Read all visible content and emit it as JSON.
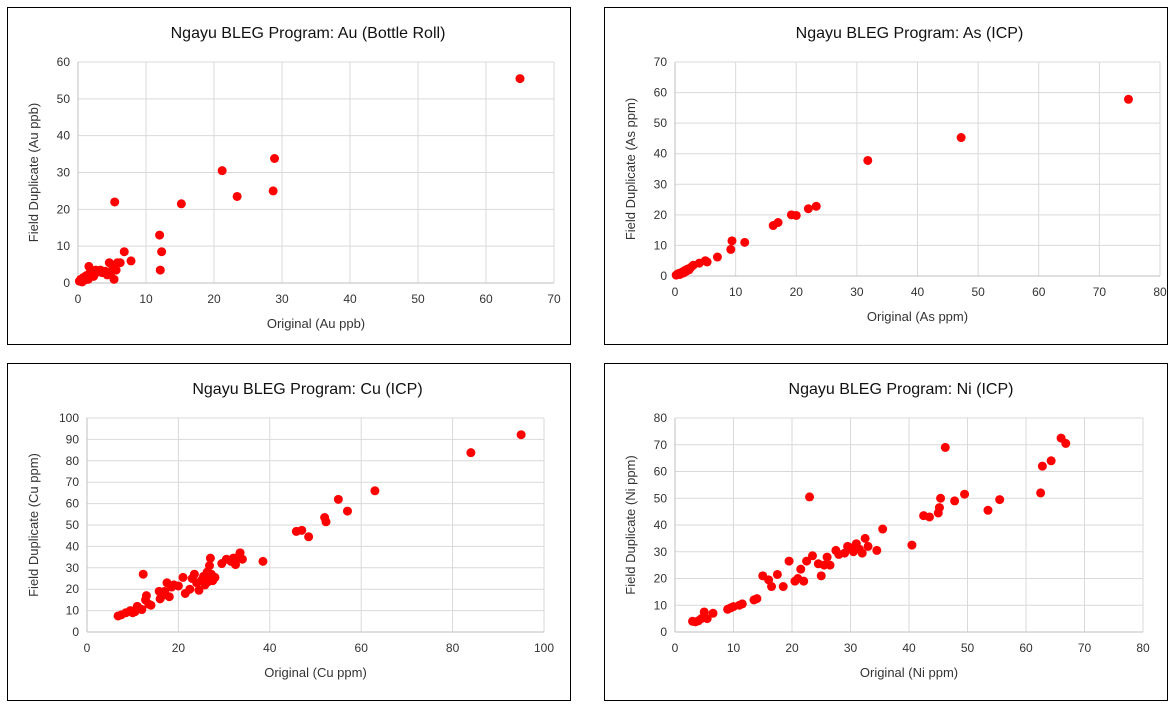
{
  "colors": {
    "marker": "#ff0000",
    "grid": "#d9d9d9",
    "border": "#000000"
  },
  "chart_data": [
    {
      "type": "scatter",
      "title": "Ngayu BLEG Program: Au (Bottle Roll)",
      "xlabel": "Original (Au ppb)",
      "ylabel": "Field Duplicate (Au ppb)",
      "xlim": [
        0,
        70
      ],
      "ylim": [
        0,
        60
      ],
      "xticks": [
        0,
        10,
        20,
        30,
        40,
        50,
        60,
        70
      ],
      "yticks": [
        0,
        10,
        20,
        30,
        40,
        50,
        60
      ],
      "grid": true,
      "points": [
        [
          0.2,
          0.5
        ],
        [
          0.4,
          1.0
        ],
        [
          0.6,
          0.3
        ],
        [
          0.8,
          1.5
        ],
        [
          1.0,
          0.8
        ],
        [
          1.2,
          2.0
        ],
        [
          1.5,
          1.0
        ],
        [
          1.6,
          4.5
        ],
        [
          1.8,
          3.0
        ],
        [
          2.0,
          2.5
        ],
        [
          2.3,
          1.8
        ],
        [
          2.6,
          3.5
        ],
        [
          3.0,
          3.0
        ],
        [
          3.3,
          3.5
        ],
        [
          3.6,
          2.8
        ],
        [
          4.0,
          3.2
        ],
        [
          4.3,
          2.2
        ],
        [
          4.6,
          5.5
        ],
        [
          4.9,
          3.0
        ],
        [
          5.1,
          4.5
        ],
        [
          5.3,
          1.0
        ],
        [
          5.4,
          22.0
        ],
        [
          5.6,
          3.5
        ],
        [
          5.8,
          5.5
        ],
        [
          6.2,
          5.5
        ],
        [
          6.8,
          8.5
        ],
        [
          7.8,
          6.0
        ],
        [
          12.0,
          13.0
        ],
        [
          12.1,
          3.5
        ],
        [
          12.3,
          8.5
        ],
        [
          15.2,
          21.5
        ],
        [
          21.2,
          30.5
        ],
        [
          23.4,
          23.5
        ],
        [
          28.7,
          25.0
        ],
        [
          28.9,
          33.8
        ],
        [
          65.0,
          55.5
        ]
      ]
    },
    {
      "type": "scatter",
      "title": "Ngayu BLEG Program: As (ICP)",
      "xlabel": "Original (As ppm)",
      "ylabel": "Field Duplicate (As ppm)",
      "xlim": [
        0,
        80
      ],
      "ylim": [
        0,
        70
      ],
      "xticks": [
        0,
        10,
        20,
        30,
        40,
        50,
        60,
        70,
        80
      ],
      "yticks": [
        0,
        10,
        20,
        30,
        40,
        50,
        60,
        70
      ],
      "grid": true,
      "points": [
        [
          0.2,
          0.3
        ],
        [
          0.4,
          0.6
        ],
        [
          0.6,
          0.8
        ],
        [
          0.8,
          0.5
        ],
        [
          1.0,
          1.0
        ],
        [
          1.2,
          1.3
        ],
        [
          1.4,
          1.0
        ],
        [
          1.6,
          1.8
        ],
        [
          1.8,
          1.5
        ],
        [
          2.0,
          2.2
        ],
        [
          2.3,
          2.0
        ],
        [
          2.6,
          2.8
        ],
        [
          3.0,
          3.5
        ],
        [
          4.0,
          4.2
        ],
        [
          5.0,
          5.0
        ],
        [
          5.3,
          4.6
        ],
        [
          7.0,
          6.2
        ],
        [
          9.2,
          8.7
        ],
        [
          9.4,
          11.5
        ],
        [
          11.5,
          11.0
        ],
        [
          16.2,
          16.5
        ],
        [
          17.0,
          17.5
        ],
        [
          19.2,
          20.0
        ],
        [
          20.0,
          19.8
        ],
        [
          22.0,
          22.0
        ],
        [
          23.3,
          22.8
        ],
        [
          31.8,
          37.8
        ],
        [
          47.2,
          45.3
        ],
        [
          74.8,
          57.8
        ]
      ]
    },
    {
      "type": "scatter",
      "title": "Ngayu BLEG Program: Cu (ICP)",
      "xlabel": "Original (Cu ppm)",
      "ylabel": "Field Duplicate (Cu ppm)",
      "xlim": [
        0,
        100
      ],
      "ylim": [
        0,
        100
      ],
      "xticks": [
        0,
        20,
        40,
        60,
        80,
        100
      ],
      "yticks": [
        0,
        10,
        20,
        30,
        40,
        50,
        60,
        70,
        80,
        90,
        100
      ],
      "grid": true,
      "points": [
        [
          6.8,
          7.5
        ],
        [
          7.5,
          8.0
        ],
        [
          8.5,
          9.0
        ],
        [
          9.5,
          10.0
        ],
        [
          10.0,
          9.0
        ],
        [
          10.5,
          9.5
        ],
        [
          11.0,
          12.0
        ],
        [
          11.5,
          11.0
        ],
        [
          12.0,
          10.5
        ],
        [
          12.3,
          27.0
        ],
        [
          12.8,
          15.0
        ],
        [
          13.0,
          17.0
        ],
        [
          13.5,
          13.0
        ],
        [
          14.0,
          12.5
        ],
        [
          15.8,
          19.0
        ],
        [
          16.0,
          15.5
        ],
        [
          16.5,
          17.0
        ],
        [
          17.0,
          19.0
        ],
        [
          17.5,
          23.0
        ],
        [
          18.0,
          16.5
        ],
        [
          18.5,
          21.0
        ],
        [
          19.0,
          22.0
        ],
        [
          20.0,
          21.5
        ],
        [
          21.0,
          25.5
        ],
        [
          21.5,
          18.0
        ],
        [
          22.5,
          20.0
        ],
        [
          23.0,
          25.0
        ],
        [
          23.5,
          27.0
        ],
        [
          24.0,
          23.0
        ],
        [
          24.5,
          19.5
        ],
        [
          25.0,
          24.0
        ],
        [
          25.5,
          26.0
        ],
        [
          25.8,
          22.0
        ],
        [
          26.0,
          25.0
        ],
        [
          26.3,
          28.0
        ],
        [
          26.5,
          23.5
        ],
        [
          26.8,
          31.0
        ],
        [
          27.0,
          34.5
        ],
        [
          27.2,
          27.0
        ],
        [
          27.5,
          24.0
        ],
        [
          28.0,
          25.5
        ],
        [
          29.5,
          32.0
        ],
        [
          30.5,
          34.0
        ],
        [
          31.5,
          33.0
        ],
        [
          32.0,
          34.5
        ],
        [
          32.5,
          31.5
        ],
        [
          33.0,
          35.0
        ],
        [
          33.5,
          37.0
        ],
        [
          34.0,
          34.0
        ],
        [
          38.5,
          33.0
        ],
        [
          45.8,
          47.0
        ],
        [
          47.0,
          47.5
        ],
        [
          48.5,
          44.5
        ],
        [
          52.0,
          53.5
        ],
        [
          52.3,
          51.5
        ],
        [
          55.0,
          62.0
        ],
        [
          57.0,
          56.5
        ],
        [
          63.0,
          66.0
        ],
        [
          84.0,
          83.8
        ],
        [
          95.0,
          92.2
        ]
      ]
    },
    {
      "type": "scatter",
      "title": "Ngayu BLEG Program: Ni (ICP)",
      "xlabel": "Original (Ni ppm)",
      "ylabel": "Field Duplicate (Ni ppm)",
      "xlim": [
        0,
        80
      ],
      "ylim": [
        0,
        80
      ],
      "xticks": [
        0,
        10,
        20,
        30,
        40,
        50,
        60,
        70,
        80
      ],
      "yticks": [
        0,
        10,
        20,
        30,
        40,
        50,
        60,
        70,
        80
      ],
      "grid": true,
      "points": [
        [
          3.0,
          4.0
        ],
        [
          3.5,
          3.8
        ],
        [
          4.0,
          4.2
        ],
        [
          4.5,
          5.0
        ],
        [
          5.0,
          7.5
        ],
        [
          5.5,
          5.0
        ],
        [
          6.5,
          7.0
        ],
        [
          9.0,
          8.5
        ],
        [
          9.5,
          9.0
        ],
        [
          10.0,
          9.5
        ],
        [
          11.0,
          10.0
        ],
        [
          11.5,
          10.5
        ],
        [
          13.5,
          12.0
        ],
        [
          14.0,
          12.5
        ],
        [
          15.0,
          21.0
        ],
        [
          16.0,
          19.5
        ],
        [
          16.5,
          17.0
        ],
        [
          17.5,
          21.5
        ],
        [
          18.5,
          17.0
        ],
        [
          19.5,
          26.5
        ],
        [
          20.5,
          19.0
        ],
        [
          21.0,
          20.0
        ],
        [
          21.5,
          23.5
        ],
        [
          22.0,
          19.0
        ],
        [
          22.5,
          26.5
        ],
        [
          23.0,
          50.5
        ],
        [
          23.5,
          28.5
        ],
        [
          24.5,
          25.5
        ],
        [
          25.0,
          21.0
        ],
        [
          25.5,
          25.0
        ],
        [
          26.0,
          28.0
        ],
        [
          26.5,
          25.0
        ],
        [
          27.5,
          30.5
        ],
        [
          28.0,
          29.0
        ],
        [
          29.0,
          29.5
        ],
        [
          29.5,
          32.0
        ],
        [
          30.0,
          31.5
        ],
        [
          30.5,
          30.0
        ],
        [
          31.0,
          33.0
        ],
        [
          31.5,
          31.0
        ],
        [
          32.0,
          29.5
        ],
        [
          32.5,
          35.0
        ],
        [
          33.0,
          32.0
        ],
        [
          34.5,
          30.5
        ],
        [
          35.5,
          38.5
        ],
        [
          40.5,
          32.5
        ],
        [
          42.5,
          43.5
        ],
        [
          43.5,
          43.0
        ],
        [
          45.0,
          44.5
        ],
        [
          45.2,
          46.5
        ],
        [
          45.4,
          50.0
        ],
        [
          46.2,
          69.0
        ],
        [
          47.8,
          49.0
        ],
        [
          49.5,
          51.5
        ],
        [
          53.5,
          45.5
        ],
        [
          55.5,
          49.5
        ],
        [
          62.5,
          52.0
        ],
        [
          62.8,
          62.0
        ],
        [
          64.3,
          64.0
        ],
        [
          66.0,
          72.5
        ],
        [
          66.8,
          70.5
        ]
      ]
    }
  ]
}
